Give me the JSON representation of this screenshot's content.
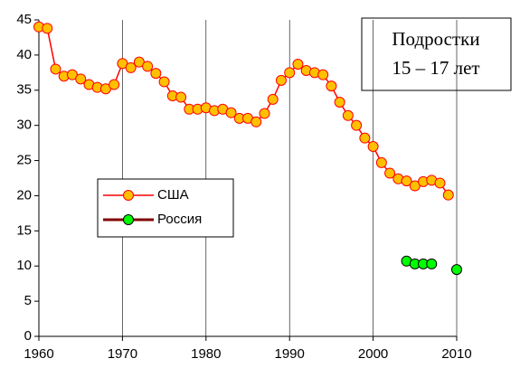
{
  "chart_data": {
    "type": "line",
    "annotation": [
      "Подростки",
      "15 – 17 лет"
    ],
    "xlim": [
      1960,
      2010
    ],
    "xticks": [
      1960,
      1970,
      1980,
      1990,
      2000,
      2010
    ],
    "ylim": [
      0,
      45
    ],
    "yticks": [
      0,
      5,
      10,
      15,
      20,
      25,
      30,
      35,
      40,
      45
    ],
    "grid": true,
    "legend": "center-left",
    "series": [
      {
        "name": "США",
        "color": "#ff0000",
        "marker_color": "#ffc000",
        "x": [
          1960,
          1961,
          1962,
          1963,
          1964,
          1965,
          1966,
          1967,
          1968,
          1969,
          1970,
          1971,
          1972,
          1973,
          1974,
          1975,
          1976,
          1977,
          1978,
          1979,
          1980,
          1981,
          1982,
          1983,
          1984,
          1985,
          1986,
          1987,
          1988,
          1989,
          1990,
          1991,
          1992,
          1993,
          1994,
          1995,
          1996,
          1997,
          1998,
          1999,
          2000,
          2001,
          2002,
          2003,
          2004,
          2005,
          2006,
          2007,
          2008,
          2009
        ],
        "values": [
          44.0,
          43.8,
          38.0,
          37.0,
          37.2,
          36.6,
          35.8,
          35.4,
          35.2,
          35.8,
          38.8,
          38.2,
          39.0,
          38.4,
          37.4,
          36.2,
          34.2,
          34.0,
          32.3,
          32.3,
          32.5,
          32.1,
          32.3,
          31.8,
          31.0,
          31.0,
          30.5,
          31.7,
          33.7,
          36.4,
          37.5,
          38.7,
          37.8,
          37.5,
          37.2,
          35.6,
          33.3,
          31.4,
          30.0,
          28.2,
          27.0,
          24.7,
          23.2,
          22.4,
          22.1,
          21.4,
          22.0,
          22.2,
          21.8,
          20.1
        ]
      },
      {
        "name": "Россия",
        "color": "#800000",
        "marker_color": "#00ff00",
        "x": [
          2004,
          2005,
          2006,
          2007,
          2008,
          2009,
          2010
        ],
        "values": [
          10.7,
          10.3,
          10.3,
          10.3,
          null,
          null,
          9.5
        ]
      }
    ]
  }
}
